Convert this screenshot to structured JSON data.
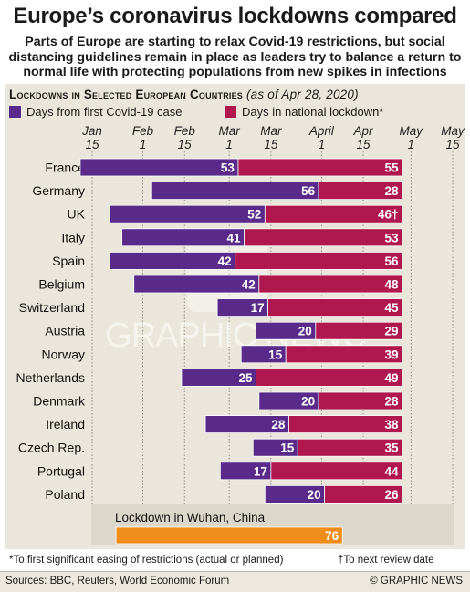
{
  "title": "Europe’s coronavirus lockdowns compared",
  "subtitle": "Parts of Europe are starting to relax Covid-19 restrictions, but social distancing guidelines remain in place as leaders try to balance a return to normal life with protecting populations from new spikes in infections",
  "section_heading": "Lockdowns in Selected European Countries",
  "as_of": "(as of Apr 28, 2020)",
  "legend": {
    "first_case": "Days from first Covid-19 case",
    "lockdown": "Days in national lockdown*"
  },
  "colors": {
    "first_case": "#5a2a8a",
    "lockdown": "#b0174e",
    "wuhan": "#f08c1a",
    "panel": "#eae6dc"
  },
  "watermark": "GRAPHIC NEWS",
  "wuhan_label": "Lockdown in Wuhan, China",
  "footnote_left": "*To first significant easing of restrictions (actual or planned)",
  "footnote_right": "†To next review date",
  "source": "Sources: BBC, Reuters, World Economic Forum",
  "credit": "© GRAPHIC NEWS",
  "chart_data": {
    "type": "bar",
    "orientation": "horizontal-stacked-timeline",
    "x_ticks": [
      {
        "label": [
          "Jan",
          "15"
        ],
        "date": "2020-01-15"
      },
      {
        "label": [
          "Feb",
          "1"
        ],
        "date": "2020-02-01"
      },
      {
        "label": [
          "Feb",
          "15"
        ],
        "date": "2020-02-15"
      },
      {
        "label": [
          "Mar",
          "1"
        ],
        "date": "2020-03-01"
      },
      {
        "label": [
          "Mar",
          "15"
        ],
        "date": "2020-03-15"
      },
      {
        "label": [
          "April",
          "1"
        ],
        "date": "2020-04-01"
      },
      {
        "label": [
          "Apr",
          "15"
        ],
        "date": "2020-04-15"
      },
      {
        "label": [
          "May",
          "1"
        ],
        "date": "2020-05-01"
      },
      {
        "label": [
          "May",
          "15"
        ],
        "date": "2020-05-15"
      }
    ],
    "categories": [
      "France",
      "Germany",
      "UK",
      "Italy",
      "Spain",
      "Belgium",
      "Switzerland",
      "Austria",
      "Norway",
      "Netherlands",
      "Denmark",
      "Ireland",
      "Czech Rep.",
      "Portugal",
      "Poland"
    ],
    "series": [
      {
        "name": "Days from first Covid-19 case",
        "values": [
          53,
          56,
          52,
          41,
          42,
          42,
          17,
          20,
          15,
          25,
          20,
          28,
          15,
          17,
          20
        ],
        "labels": [
          "53",
          "56",
          "52",
          "41",
          "42",
          "42",
          "17",
          "20",
          "15",
          "25",
          "20",
          "28",
          "15",
          "17",
          "20"
        ]
      },
      {
        "name": "Days in national lockdown*",
        "values": [
          55,
          28,
          46,
          53,
          56,
          48,
          45,
          29,
          39,
          49,
          28,
          38,
          35,
          44,
          26
        ],
        "labels": [
          "55",
          "28",
          "46†",
          "53",
          "56",
          "48",
          "45",
          "29",
          "39",
          "49",
          "28",
          "38",
          "35",
          "44",
          "26"
        ]
      }
    ],
    "wuhan": {
      "value": 76,
      "label": "76"
    }
  }
}
